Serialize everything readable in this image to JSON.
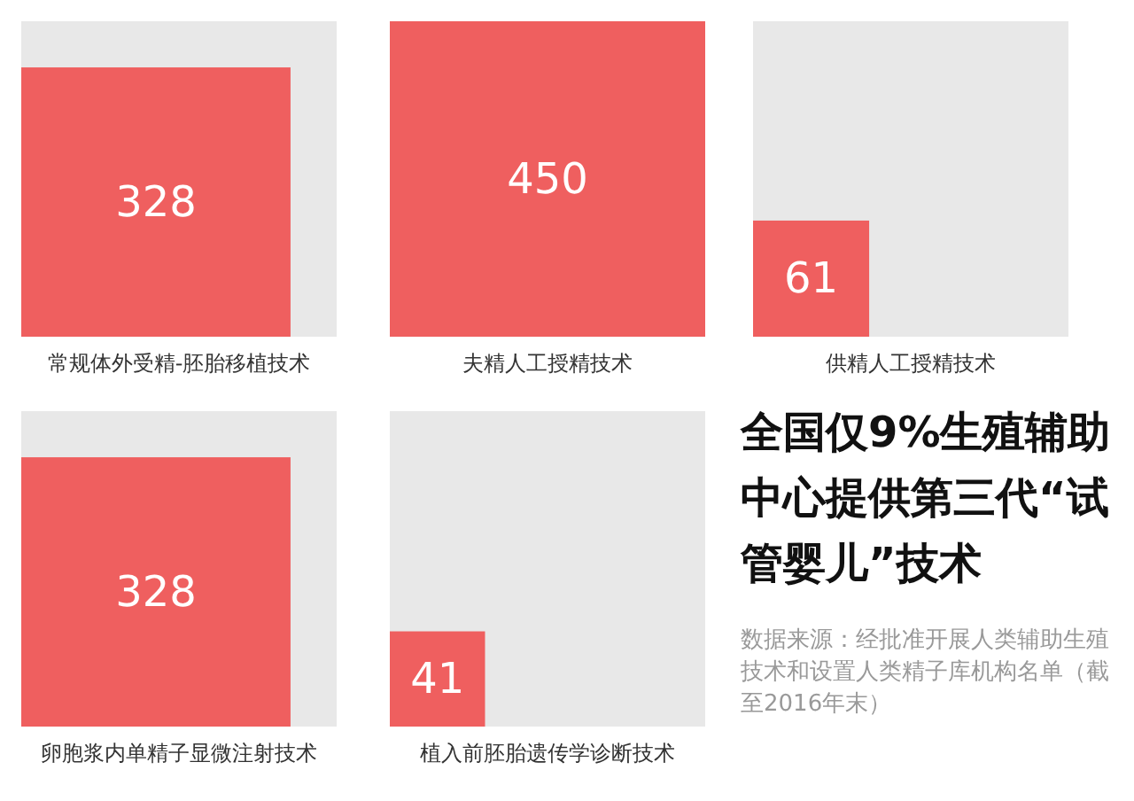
{
  "chart_data": {
    "type": "other",
    "title": "全国仅9%生殖辅助中心提供第三代“试管婴儿”技术",
    "categories": [
      "常规体外受精-胚胎移植技术",
      "夫精人工授精技术",
      "供精人工授精技术",
      "卵胞浆内单精子显微注射技术",
      "植入前胚胎遗传学诊断技术"
    ],
    "values": [
      328,
      450,
      61,
      328,
      41
    ],
    "color": "#ef5f5f",
    "data_labels": true,
    "annotations": [
      "数据来源：经批准开展人类辅助生殖技术和设置人类精子库机构名单（截至2016年末）"
    ]
  }
}
